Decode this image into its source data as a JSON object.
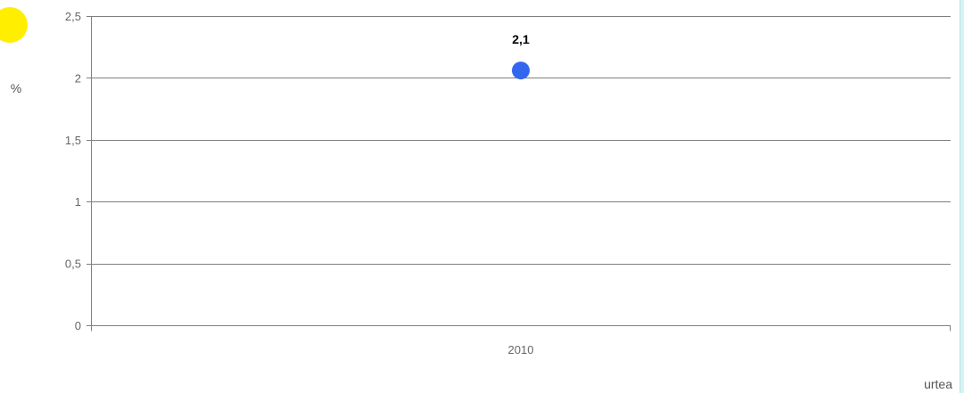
{
  "chart_data": {
    "type": "scatter",
    "categories": [
      "2010"
    ],
    "series": [
      {
        "values": [
          2.06
        ],
        "labels": [
          "2,1"
        ]
      }
    ],
    "ylim": [
      0,
      2.5
    ],
    "yticks": [
      0,
      0.5,
      1,
      1.5,
      2,
      2.5
    ],
    "ytick_labels": [
      "0",
      "0,5",
      "1",
      "1,5",
      "2",
      "2,5"
    ],
    "ylabel": "%",
    "xlabel": "urtea",
    "grid": true
  },
  "colors": {
    "marker": "#3366ee",
    "badge": "#ffee00"
  }
}
